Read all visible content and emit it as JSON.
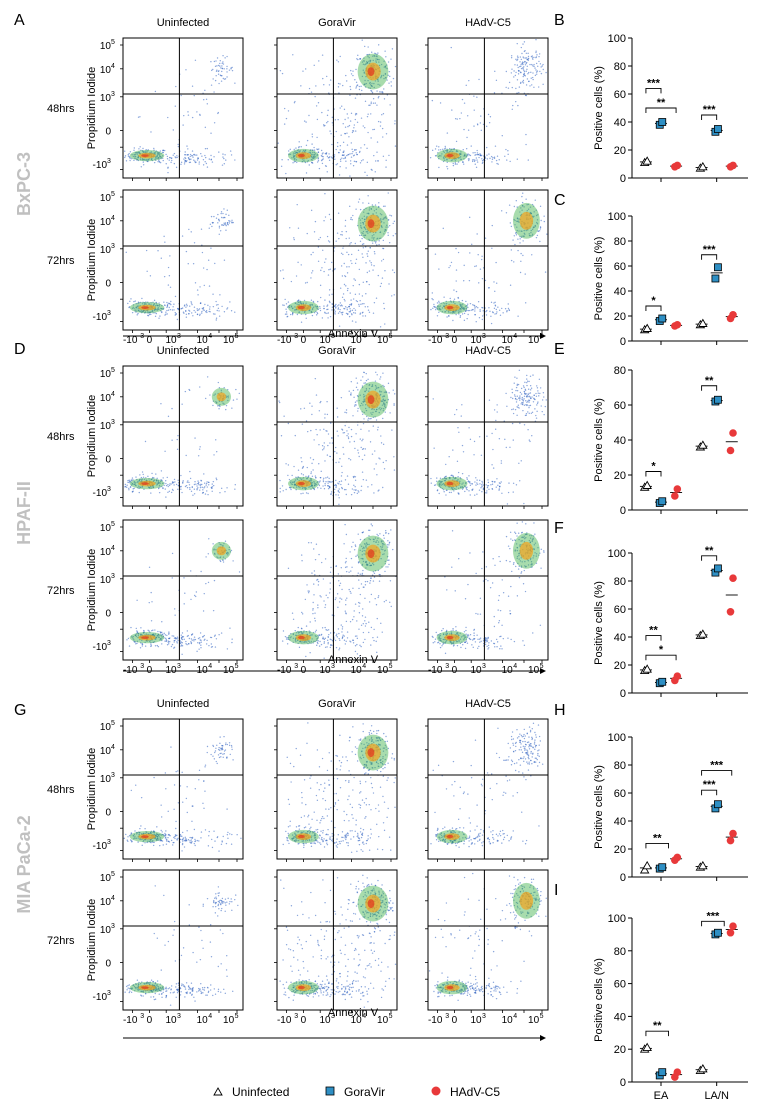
{
  "figure": {
    "panel_letters": [
      "A",
      "B",
      "C",
      "D",
      "E",
      "F",
      "G",
      "H",
      "I"
    ],
    "x_axis_label": "Annexin V",
    "y_axis_label": "Propidium Iodide",
    "flow_tick_labels": {
      "x": [
        "-10",
        "3",
        "0",
        "10",
        "3",
        "10",
        "4",
        "10",
        "5"
      ],
      "y": [
        "10",
        "5",
        "10",
        "4",
        "10",
        "3",
        "0",
        "-10",
        "3"
      ]
    },
    "conditions": [
      "Uninfected",
      "GoraVir",
      "HAdV-C5"
    ],
    "timepoints": [
      "48hrs",
      "72hrs"
    ],
    "cell_lines": [
      "BxPC-3",
      "HPAF-II",
      "MIA PaCa-2"
    ],
    "legend": [
      {
        "label": "Uninfected",
        "marker": "triangle",
        "color": "#ffffff"
      },
      {
        "label": "GoraVir",
        "marker": "square",
        "color": "#2e8fc4"
      },
      {
        "label": "HAdV-C5",
        "marker": "circle",
        "color": "#e8393a"
      }
    ],
    "colors": {
      "uninfected": "#ffffff",
      "goravir": "#2e8fc4",
      "hadv": "#e8393a",
      "cell_line_label": "#c0c0c0",
      "density_low": "#2b5fbf",
      "density_mid": "#3fb24a",
      "density_high": "#f4a21c"
    }
  },
  "chart_data": [
    {
      "panel": "B",
      "type": "scatter",
      "cell_line": "BxPC-3",
      "timepoint": "48hrs",
      "ylabel": "Positive cells (%)",
      "ylim": [
        0,
        100
      ],
      "yticks": [
        0,
        20,
        40,
        60,
        80,
        100
      ],
      "categories": [
        "EA",
        "LA/N"
      ],
      "show_xticklabels": false,
      "series": [
        {
          "name": "Uninfected",
          "values": [
            [
              11,
              12
            ],
            [
              7,
              8
            ]
          ]
        },
        {
          "name": "GoraVir",
          "values": [
            [
              38,
              40
            ],
            [
              33,
              35
            ]
          ]
        },
        {
          "name": "HAdV-C5",
          "values": [
            [
              8,
              9
            ],
            [
              8,
              9
            ]
          ]
        }
      ],
      "significance": [
        {
          "group": "EA",
          "from": "Uninfected",
          "to": "HAdV-C5",
          "label": "**"
        },
        {
          "group": "EA",
          "from": "Uninfected",
          "to": "GoraVir",
          "label": "***"
        },
        {
          "group": "LA/N",
          "from": "Uninfected",
          "to": "GoraVir",
          "label": "***"
        }
      ]
    },
    {
      "panel": "C",
      "type": "scatter",
      "cell_line": "BxPC-3",
      "timepoint": "72hrs",
      "ylabel": "Positive cells (%)",
      "ylim": [
        0,
        100
      ],
      "yticks": [
        0,
        20,
        40,
        60,
        80,
        100
      ],
      "categories": [
        "EA",
        "LA/N"
      ],
      "show_xticklabels": false,
      "series": [
        {
          "name": "Uninfected",
          "values": [
            [
              9,
              10
            ],
            [
              13,
              14
            ]
          ]
        },
        {
          "name": "GoraVir",
          "values": [
            [
              16,
              18
            ],
            [
              50,
              59
            ]
          ]
        },
        {
          "name": "HAdV-C5",
          "values": [
            [
              12,
              13
            ],
            [
              18,
              21
            ]
          ]
        }
      ],
      "significance": [
        {
          "group": "EA",
          "from": "Uninfected",
          "to": "GoraVir",
          "label": "*"
        },
        {
          "group": "LA/N",
          "from": "Uninfected",
          "to": "GoraVir",
          "label": "***"
        }
      ]
    },
    {
      "panel": "E",
      "type": "scatter",
      "cell_line": "HPAF-II",
      "timepoint": "48hrs",
      "ylabel": "Positive cells (%)",
      "ylim": [
        0,
        80
      ],
      "yticks": [
        0,
        20,
        40,
        60,
        80
      ],
      "categories": [
        "EA",
        "LA/N"
      ],
      "show_xticklabels": false,
      "series": [
        {
          "name": "Uninfected",
          "values": [
            [
              13,
              14
            ],
            [
              36,
              37
            ]
          ]
        },
        {
          "name": "GoraVir",
          "values": [
            [
              4,
              5
            ],
            [
              62,
              63
            ]
          ]
        },
        {
          "name": "HAdV-C5",
          "values": [
            [
              8,
              12
            ],
            [
              34,
              44
            ]
          ]
        }
      ],
      "significance": [
        {
          "group": "EA",
          "from": "Uninfected",
          "to": "GoraVir",
          "label": "*"
        },
        {
          "group": "LA/N",
          "from": "Uninfected",
          "to": "GoraVir",
          "label": "**"
        }
      ]
    },
    {
      "panel": "F",
      "type": "scatter",
      "cell_line": "HPAF-II",
      "timepoint": "72hrs",
      "ylabel": "Positive cells (%)",
      "ylim": [
        0,
        100
      ],
      "yticks": [
        0,
        20,
        40,
        60,
        80,
        100
      ],
      "categories": [
        "EA",
        "LA/N"
      ],
      "show_xticklabels": false,
      "series": [
        {
          "name": "Uninfected",
          "values": [
            [
              16,
              17
            ],
            [
              41,
              42
            ]
          ]
        },
        {
          "name": "GoraVir",
          "values": [
            [
              7,
              8
            ],
            [
              86,
              89
            ]
          ]
        },
        {
          "name": "HAdV-C5",
          "values": [
            [
              9,
              12
            ],
            [
              58,
              82
            ]
          ]
        }
      ],
      "significance": [
        {
          "group": "EA",
          "from": "Uninfected",
          "to": "HAdV-C5",
          "label": "*"
        },
        {
          "group": "EA",
          "from": "Uninfected",
          "to": "GoraVir",
          "label": "**"
        },
        {
          "group": "LA/N",
          "from": "Uninfected",
          "to": "GoraVir",
          "label": "**"
        }
      ]
    },
    {
      "panel": "H",
      "type": "scatter",
      "cell_line": "MIA PaCa-2",
      "timepoint": "48hrs",
      "ylabel": "Positive cells (%)",
      "ylim": [
        0,
        100
      ],
      "yticks": [
        0,
        20,
        40,
        60,
        80,
        100
      ],
      "categories": [
        "EA",
        "LA/N"
      ],
      "show_xticklabels": false,
      "series": [
        {
          "name": "Uninfected",
          "values": [
            [
              5,
              8
            ],
            [
              7,
              8
            ]
          ]
        },
        {
          "name": "GoraVir",
          "values": [
            [
              6,
              7
            ],
            [
              49,
              52
            ]
          ]
        },
        {
          "name": "HAdV-C5",
          "values": [
            [
              12,
              14
            ],
            [
              26,
              31
            ]
          ]
        }
      ],
      "significance": [
        {
          "group": "EA",
          "from": "Uninfected",
          "to": "GoraVir+HAdV-C5",
          "label": "**"
        },
        {
          "group": "LA/N",
          "from": "Uninfected",
          "to": "GoraVir",
          "label": "***"
        },
        {
          "group": "LA/N",
          "from": "Uninfected",
          "to": "HAdV-C5",
          "label": "***"
        }
      ]
    },
    {
      "panel": "I",
      "type": "scatter",
      "cell_line": "MIA PaCa-2",
      "timepoint": "72hrs",
      "ylabel": "Positive cells (%)",
      "ylim": [
        0,
        100
      ],
      "yticks": [
        0,
        20,
        40,
        60,
        80,
        100
      ],
      "categories": [
        "EA",
        "LA/N"
      ],
      "show_xticklabels": true,
      "series": [
        {
          "name": "Uninfected",
          "values": [
            [
              20,
              21
            ],
            [
              7,
              8
            ]
          ]
        },
        {
          "name": "GoraVir",
          "values": [
            [
              4,
              6
            ],
            [
              90,
              91
            ]
          ]
        },
        {
          "name": "HAdV-C5",
          "values": [
            [
              3,
              6
            ],
            [
              91,
              95
            ]
          ]
        }
      ],
      "significance": [
        {
          "group": "EA",
          "from": "Uninfected",
          "to": "GoraVir+HAdV-C5",
          "label": "**"
        },
        {
          "group": "LA/N",
          "from": "Uninfected",
          "to": "GoraVir+HAdV-C5",
          "label": "***"
        }
      ]
    }
  ]
}
